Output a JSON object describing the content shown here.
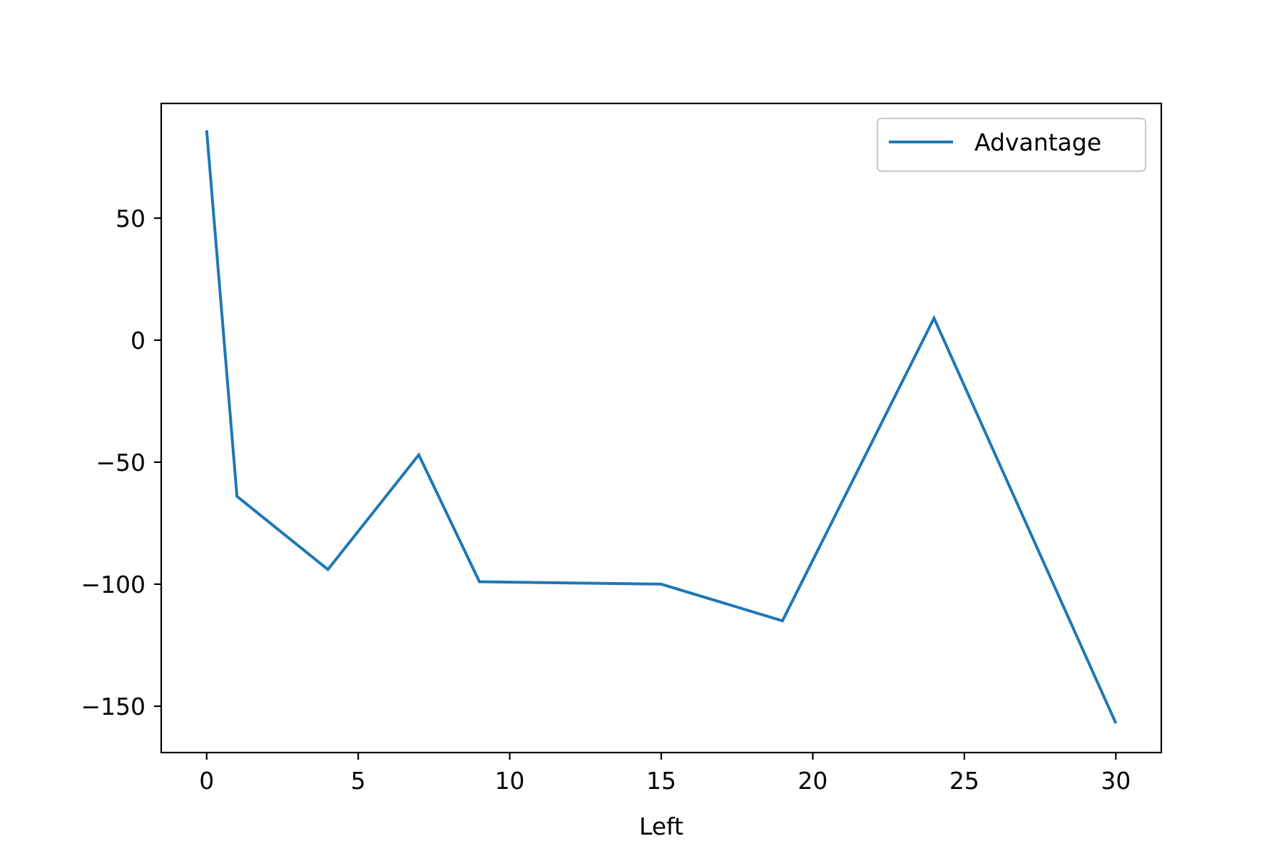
{
  "chart_data": {
    "type": "line",
    "title": "",
    "xlabel": "Left",
    "ylabel": "",
    "xlim": [
      -1.5,
      31.5
    ],
    "ylim": [
      -169,
      97
    ],
    "x_ticks": [
      0,
      5,
      10,
      15,
      20,
      25,
      30
    ],
    "x_tick_labels": [
      "0",
      "5",
      "10",
      "15",
      "20",
      "25",
      "30"
    ],
    "y_ticks": [
      50,
      0,
      -50,
      -100,
      -150
    ],
    "y_tick_labels": [
      "50",
      "0",
      "−50",
      "−100",
      "−150"
    ],
    "grid": false,
    "legend": {
      "position": "upper-right",
      "entries": [
        "Advantage"
      ]
    },
    "series": [
      {
        "name": "Advantage",
        "color": "#1f77b4",
        "x": [
          0,
          1,
          4,
          7,
          9,
          15,
          19,
          24,
          30
        ],
        "y": [
          86,
          -64,
          -94,
          -47,
          -99,
          -100,
          -115,
          9,
          -157
        ]
      }
    ]
  }
}
